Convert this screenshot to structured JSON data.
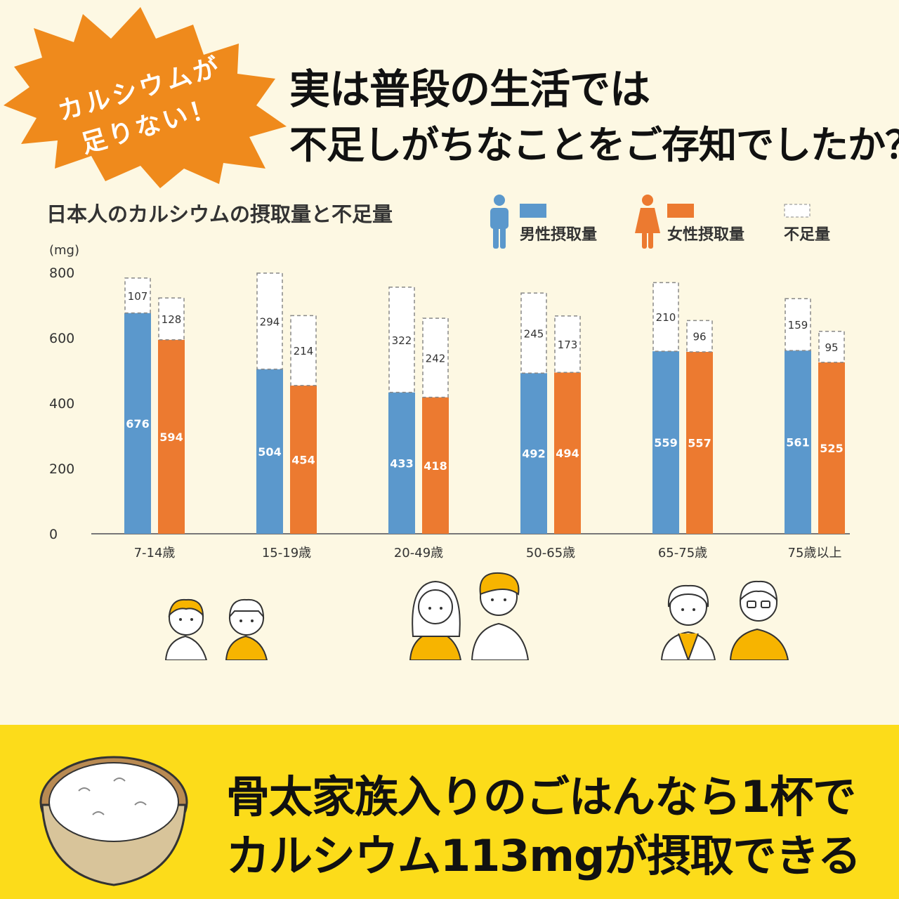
{
  "badge": {
    "line1": "カルシウムが",
    "line2": "足りない！",
    "color": "#ef8a1c"
  },
  "headline": {
    "line1": "実は普段の生活では",
    "line2": "不足しがちなことをご存知でしたか？"
  },
  "legend": {
    "male": "男性摂取量",
    "female": "女性摂取量",
    "shortfall": "不足量"
  },
  "chart_data": {
    "type": "bar",
    "title": "日本人のカルシウムの摂取量と不足量",
    "ylabel": "(mg)",
    "ylim": [
      0,
      800
    ],
    "yticks": [
      0,
      200,
      400,
      600,
      800
    ],
    "categories": [
      "7-14歳",
      "15-19歳",
      "20-49歳",
      "50-65歳",
      "65-75歳",
      "75歳以上"
    ],
    "stacked": true,
    "grid": false,
    "legend_position": "top-right",
    "series": [
      {
        "name": "男性摂取量",
        "color": "#5b98cc",
        "intake": [
          676,
          504,
          433,
          492,
          559,
          561
        ],
        "shortfall": [
          107,
          294,
          322,
          245,
          210,
          159
        ]
      },
      {
        "name": "女性摂取量",
        "color": "#ec7a30",
        "intake": [
          594,
          454,
          418,
          494,
          557,
          525
        ],
        "shortfall": [
          128,
          214,
          242,
          173,
          96,
          95
        ]
      }
    ]
  },
  "bottom": {
    "line1": "骨太家族入りのごはんなら1杯で",
    "line2": "カルシウム113mgが摂取できる",
    "band_color": "#fcdc1a"
  }
}
